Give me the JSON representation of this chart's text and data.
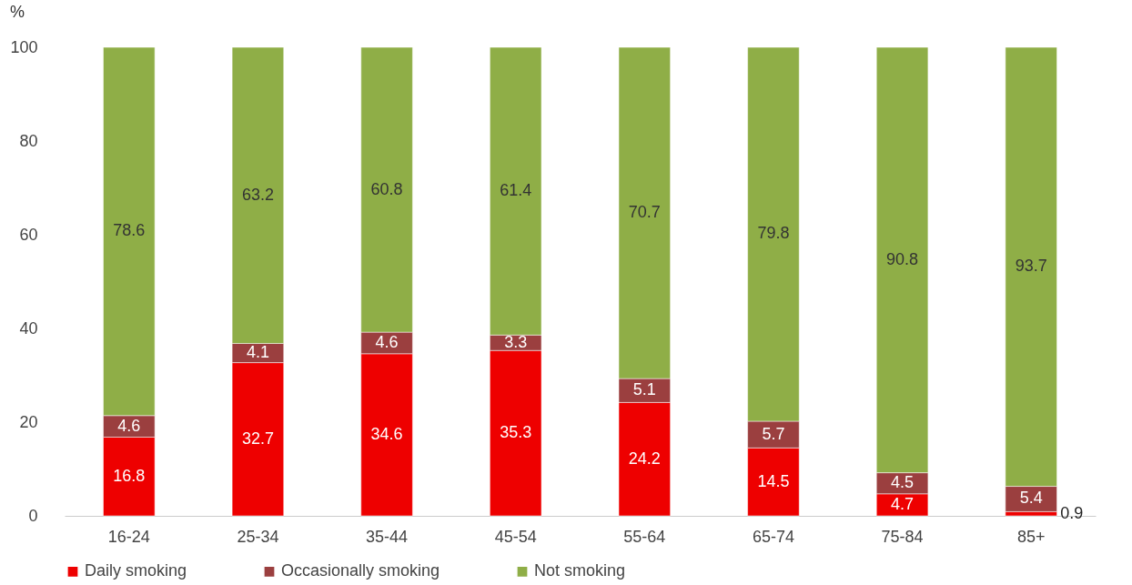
{
  "chart_data": {
    "type": "bar",
    "stacked": true,
    "ylabel": "%",
    "categories": [
      "16-24",
      "25-34",
      "35-44",
      "45-54",
      "55-64",
      "65-74",
      "75-84",
      "85+"
    ],
    "series": [
      {
        "name": "Daily smoking",
        "color": "#ee0000",
        "values": [
          16.8,
          32.7,
          34.6,
          35.3,
          24.2,
          14.5,
          4.7,
          0.9
        ]
      },
      {
        "name": "Occasionally smoking",
        "color": "#9b3f3f",
        "values": [
          4.6,
          4.1,
          4.6,
          3.3,
          5.1,
          5.7,
          4.5,
          5.4
        ]
      },
      {
        "name": "Not smoking",
        "color": "#8fae47",
        "values": [
          78.6,
          63.2,
          60.8,
          61.4,
          70.7,
          79.8,
          90.8,
          93.7
        ]
      }
    ],
    "ylim": [
      0,
      100
    ],
    "yticks": [
      0,
      20,
      40,
      60,
      80,
      100
    ],
    "grid": false,
    "legend": "bottom",
    "data_labels": true
  }
}
